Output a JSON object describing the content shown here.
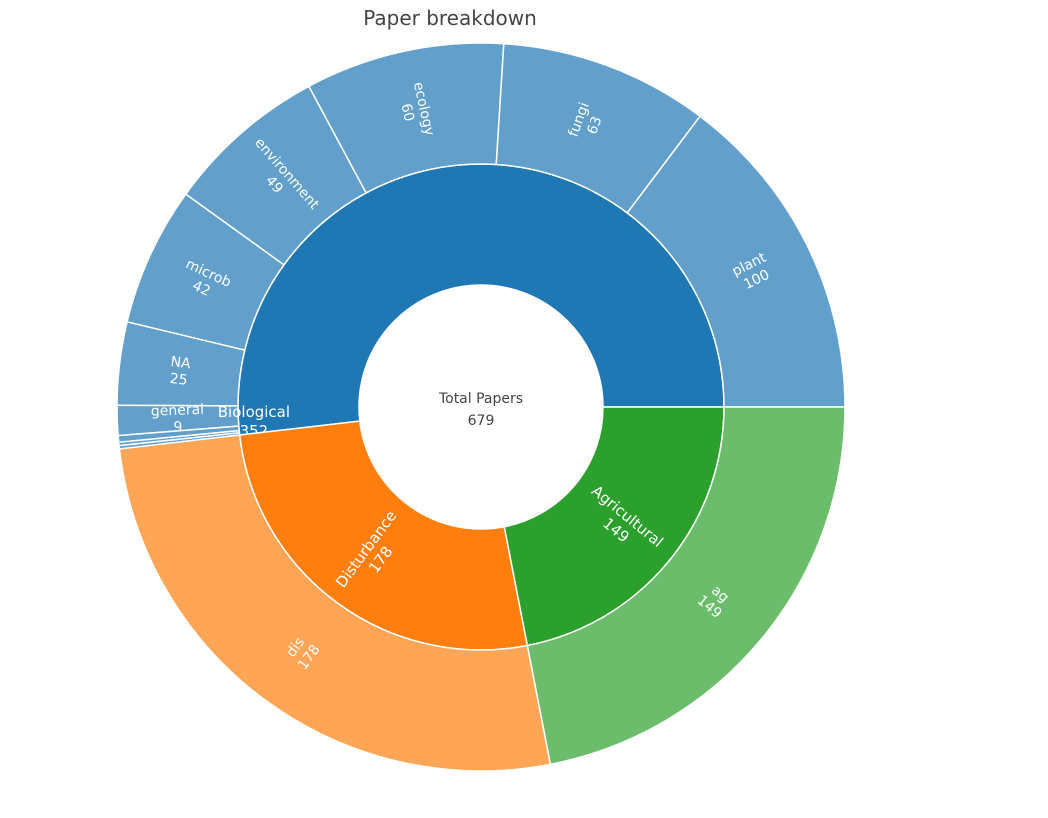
{
  "chart_data": {
    "type": "sunburst",
    "title": "Paper breakdown",
    "root": {
      "label": "Total Papers",
      "value": 679
    },
    "categories": [
      {
        "label": "Biological",
        "value": 352,
        "color": "#1f77b4",
        "child_color": "#629fca",
        "children": [
          {
            "label": "plant",
            "value": 100
          },
          {
            "label": "fungi",
            "value": 63
          },
          {
            "label": "ecology",
            "value": 60
          },
          {
            "label": "environment",
            "value": 49
          },
          {
            "label": "microb",
            "value": 42
          },
          {
            "label": "NA",
            "value": 25
          },
          {
            "label": "general",
            "value": 9
          },
          {
            "label": "",
            "value": 2
          },
          {
            "label": "",
            "value": 1
          },
          {
            "label": "",
            "value": 1
          }
        ]
      },
      {
        "label": "Disturbance",
        "value": 178,
        "color": "#ff7f0e",
        "child_color": "#ffa556",
        "children": [
          {
            "label": "dis",
            "value": 178
          }
        ]
      },
      {
        "label": "Agricultural",
        "value": 149,
        "color": "#2ca02c",
        "child_color": "#6bbc6b",
        "children": [
          {
            "label": "ag",
            "value": 149
          }
        ]
      }
    ]
  }
}
